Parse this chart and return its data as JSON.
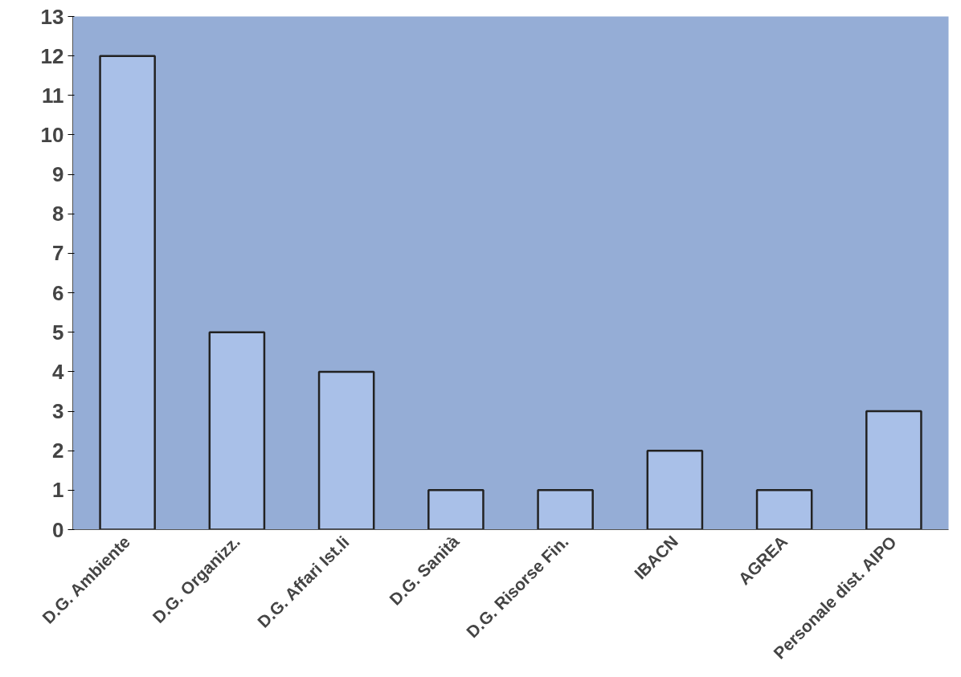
{
  "chart_data": {
    "type": "bar",
    "categories": [
      "D.G. Ambiente",
      "D.G. Organizz.",
      "D.G. Affari Ist.li",
      "D.G. Sanità",
      "D.G. Risorse Fin.",
      "IBACN",
      "AGREA",
      "Personale dist. AIPO"
    ],
    "values": [
      12,
      5,
      4,
      1,
      1,
      2,
      1,
      3
    ],
    "color": "#a9c0e8",
    "ylim": [
      0,
      13
    ],
    "yticks": [
      0,
      1,
      2,
      3,
      4,
      5,
      6,
      7,
      8,
      9,
      10,
      11,
      12,
      13
    ],
    "grid": false
  }
}
